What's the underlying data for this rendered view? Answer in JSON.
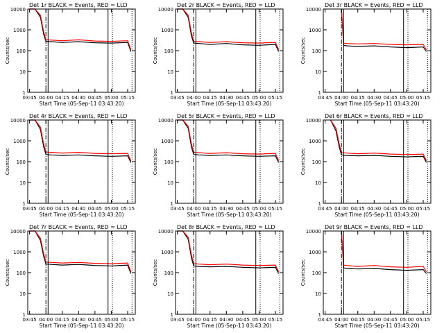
{
  "panel_titles": [
    "Det 1r BLACK = Events, RED = LLD",
    "Det 2r BLACK = Events, RED = LLD",
    "Det 3r BLACK = Events, RED = LLD",
    "Det 4r BLACK = Events, RED = LLD",
    "Det 5r BLACK = Events, RED = LLD",
    "Det 6r BLACK = Events, RED = LLD",
    "Det 7r BLACK = Events, RED = LLD",
    "Det 8r BLACK = Events, RED = LLD",
    "Det 9r BLACK = Events, RED = LLD"
  ],
  "ylabel": "Counts/sec",
  "xlabel": "Start Time (05-Sep-11 03:43:20)",
  "x_ticks": [
    "03:45",
    "04:00",
    "04:15",
    "04:30",
    "04:45",
    "05:00",
    "05:15"
  ],
  "y_ticks": [
    "1",
    "10",
    "100",
    "1000",
    "10000"
  ],
  "colors": {
    "events": "#000000",
    "lld": "#ff0000"
  },
  "chart_data": {
    "type": "line",
    "y_scale": "log",
    "ylim": [
      1,
      10000
    ],
    "xlim": [
      "03:43:20",
      "05:22:00"
    ],
    "series_names": [
      "Events",
      "LLD"
    ],
    "markers": {
      "dash_dot": "04:00",
      "solid": [
        "04:02",
        "04:57"
      ],
      "dotted": [
        "05:01",
        "05:19"
      ]
    },
    "panels": [
      {
        "det": "1r",
        "x": [
          "03:45",
          "03:50",
          "03:55",
          "03:58",
          "04:00",
          "04:05",
          "04:15",
          "04:30",
          "04:45",
          "05:00",
          "05:15",
          "05:18"
        ],
        "events": [
          10000,
          10000,
          4000,
          600,
          280,
          270,
          250,
          270,
          240,
          230,
          250,
          90
        ],
        "lld": [
          10000,
          10000,
          5000,
          800,
          330,
          320,
          300,
          330,
          290,
          280,
          300,
          110
        ]
      },
      {
        "det": "2r",
        "x": [
          "03:45",
          "03:50",
          "03:55",
          "03:58",
          "04:00",
          "04:05",
          "04:15",
          "04:30",
          "04:45",
          "05:00",
          "05:15",
          "05:18"
        ],
        "events": [
          10000,
          10000,
          4000,
          500,
          230,
          220,
          200,
          220,
          190,
          180,
          200,
          90
        ],
        "lld": [
          10000,
          10000,
          5000,
          700,
          280,
          270,
          250,
          270,
          240,
          230,
          250,
          110
        ]
      },
      {
        "det": "3r",
        "x": [
          "04:00",
          "04:02",
          "04:05",
          "04:15",
          "04:30",
          "04:45",
          "05:00",
          "05:15",
          "05:18"
        ],
        "events": [
          10000,
          180,
          170,
          160,
          170,
          150,
          140,
          150,
          90
        ],
        "lld": [
          10000,
          230,
          220,
          210,
          220,
          200,
          190,
          200,
          110
        ]
      },
      {
        "det": "4r",
        "x": [
          "03:45",
          "03:50",
          "03:55",
          "03:58",
          "04:00",
          "04:05",
          "04:15",
          "04:30",
          "04:45",
          "05:00",
          "05:15",
          "05:18"
        ],
        "events": [
          10000,
          10000,
          3500,
          500,
          220,
          210,
          200,
          210,
          190,
          180,
          190,
          90
        ],
        "lld": [
          10000,
          10000,
          4500,
          700,
          290,
          280,
          260,
          280,
          250,
          240,
          250,
          110
        ]
      },
      {
        "det": "5r",
        "x": [
          "03:45",
          "03:50",
          "03:55",
          "03:58",
          "04:00",
          "04:05",
          "04:15",
          "04:30",
          "04:45",
          "05:00",
          "05:15",
          "05:18"
        ],
        "events": [
          10000,
          10000,
          4000,
          500,
          220,
          210,
          200,
          210,
          190,
          180,
          190,
          90
        ],
        "lld": [
          10000,
          10000,
          5000,
          700,
          280,
          270,
          250,
          270,
          240,
          230,
          250,
          110
        ]
      },
      {
        "det": "6r",
        "x": [
          "03:50",
          "03:55",
          "03:58",
          "04:00",
          "04:05",
          "04:15",
          "04:30",
          "04:45",
          "05:00",
          "05:15",
          "05:18"
        ],
        "events": [
          10000,
          3000,
          500,
          210,
          200,
          190,
          200,
          180,
          170,
          180,
          90
        ],
        "lld": [
          10000,
          4000,
          700,
          270,
          260,
          240,
          260,
          230,
          220,
          230,
          110
        ]
      },
      {
        "det": "7r",
        "x": [
          "03:45",
          "03:50",
          "03:55",
          "03:58",
          "04:00",
          "04:05",
          "04:15",
          "04:30",
          "04:45",
          "05:00",
          "05:15",
          "05:18"
        ],
        "events": [
          10000,
          10000,
          3500,
          600,
          260,
          250,
          230,
          250,
          220,
          210,
          230,
          90
        ],
        "lld": [
          10000,
          10000,
          4500,
          800,
          320,
          310,
          290,
          310,
          280,
          270,
          290,
          110
        ]
      },
      {
        "det": "8r",
        "x": [
          "03:45",
          "03:50",
          "03:55",
          "03:58",
          "04:00",
          "04:05",
          "04:15",
          "04:30",
          "04:45",
          "05:00",
          "05:15",
          "05:18"
        ],
        "events": [
          10000,
          10000,
          4000,
          500,
          210,
          200,
          190,
          200,
          180,
          170,
          180,
          90
        ],
        "lld": [
          10000,
          10000,
          5000,
          700,
          270,
          260,
          240,
          260,
          230,
          220,
          230,
          110
        ]
      },
      {
        "det": "9r",
        "x": [
          "04:00",
          "04:02",
          "04:05",
          "04:15",
          "04:30",
          "04:45",
          "05:00",
          "05:15",
          "05:18"
        ],
        "events": [
          10000,
          170,
          160,
          150,
          160,
          140,
          130,
          140,
          90
        ],
        "lld": [
          10000,
          230,
          220,
          200,
          220,
          190,
          180,
          200,
          110
        ]
      }
    ]
  }
}
